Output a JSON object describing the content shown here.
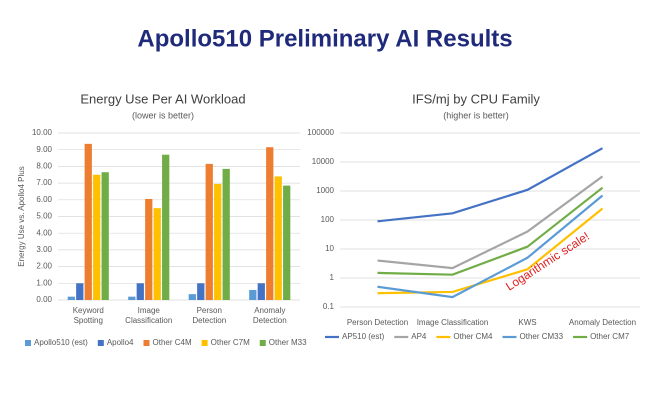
{
  "title": "Apollo510 Preliminary AI Results",
  "chart_data": [
    {
      "type": "bar",
      "title": "Energy Use Per AI Workload",
      "subtitle": "(lower is better)",
      "ylabel": "Energy Use vs. Apollo4 Plus",
      "categories": [
        "Keyword Spotting",
        "Image Classification",
        "Person Detection",
        "Anomaly Detection"
      ],
      "series": [
        {
          "name": "Apollo510 (est)",
          "color": "#5b9bd5",
          "values": [
            0.2,
            0.2,
            0.35,
            0.6
          ]
        },
        {
          "name": "Apollo4",
          "color": "#4472c4",
          "values": [
            1,
            1,
            1,
            1
          ]
        },
        {
          "name": "Other C4M",
          "color": "#ed7d31",
          "values": [
            9.35,
            6.05,
            8.15,
            9.15
          ]
        },
        {
          "name": "Other C7M",
          "color": "#ffc000",
          "values": [
            7.5,
            5.5,
            6.95,
            7.4
          ]
        },
        {
          "name": "Other M33",
          "color": "#70ad47",
          "values": [
            7.65,
            8.7,
            7.85,
            6.85
          ]
        }
      ],
      "ylim": [
        0,
        10
      ],
      "yticks": [
        {
          "value": 0,
          "label": "0.00"
        },
        {
          "value": 1,
          "label": "1.00"
        },
        {
          "value": 2,
          "label": "2.00"
        },
        {
          "value": 3,
          "label": "3.00"
        },
        {
          "value": 4,
          "label": "4.00"
        },
        {
          "value": 5,
          "label": "5.00"
        },
        {
          "value": 6,
          "label": "6.00"
        },
        {
          "value": 7,
          "label": "7.00"
        },
        {
          "value": 8,
          "label": "8.00"
        },
        {
          "value": 9,
          "label": "9.00"
        },
        {
          "value": 10,
          "label": "10.00"
        }
      ],
      "grid": true,
      "legend": "bottom"
    },
    {
      "type": "line",
      "title": "IFS/mj by CPU Family",
      "subtitle": "(higher is better)",
      "categories": [
        "Person Detection",
        "Image Classification",
        "KWS",
        "Anomaly Detection"
      ],
      "series": [
        {
          "name": "AP510 (est)",
          "color": "#4472c4",
          "values": [
            90,
            170,
            1100,
            30000
          ]
        },
        {
          "name": "AP4",
          "color": "#a5a5a5",
          "values": [
            4,
            2.2,
            40,
            3200
          ]
        },
        {
          "name": "Other CM4",
          "color": "#ffc000",
          "values": [
            0.3,
            0.33,
            2,
            250
          ]
        },
        {
          "name": "Other CM33",
          "color": "#5b9bd5",
          "values": [
            0.5,
            0.22,
            5,
            700
          ]
        },
        {
          "name": "Other CM7",
          "color": "#70ad47",
          "values": [
            1.5,
            1.3,
            12,
            1300
          ]
        }
      ],
      "log": true,
      "ylim": [
        0.1,
        100000
      ],
      "yticks": [
        0.1,
        1,
        10,
        100,
        1000,
        10000,
        100000
      ],
      "grid": true,
      "legend": "bottom",
      "annotation": {
        "text": "Logarithmic scale!",
        "color": "#e02020"
      }
    }
  ]
}
